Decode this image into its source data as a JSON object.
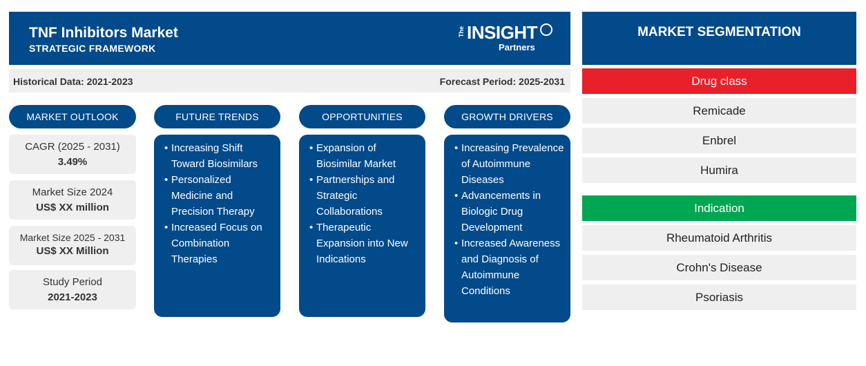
{
  "header": {
    "title": "TNF Inhibitors Market",
    "subtitle": "STRATEGIC FRAMEWORK",
    "logo": {
      "the": "The",
      "insight": "INSIGHT",
      "partners": "Partners"
    }
  },
  "period": {
    "historical": "Historical Data: 2021-2023",
    "forecast": "Forecast Period: 2025-2031"
  },
  "columns": {
    "outlook": "MARKET OUTLOOK",
    "trends": "FUTURE TRENDS",
    "opportunities": "OPPORTUNITIES",
    "drivers": "GROWTH DRIVERS"
  },
  "outlook_cards": [
    {
      "label": "CAGR (2025 - 2031)",
      "value": "3.49%"
    },
    {
      "label": "Market Size 2024",
      "value": "US$ XX million"
    },
    {
      "label": "Market Size 2025 - 2031",
      "value": "US$ XX Million"
    },
    {
      "label": "Study Period",
      "value": "2021-2023"
    }
  ],
  "trends": [
    "Increasing Shift Toward Biosimilars",
    "Personalized Medicine and Precision Therapy",
    "Increased Focus on Combination Therapies"
  ],
  "opportunities": [
    "Expansion of Biosimilar Market",
    "Partnerships and Strategic Collaborations",
    "Therapeutic Expansion into New Indications"
  ],
  "drivers": [
    "Increasing Prevalence of Autoimmune Diseases",
    "Advancements in Biologic Drug Development",
    "Increased Awareness and Diagnosis of Autoimmune Conditions"
  ],
  "segmentation": {
    "title": "MARKET SEGMENTATION",
    "groups": [
      {
        "name": "Drug class",
        "color": "#e8202a",
        "items": [
          "Remicade",
          "Enbrel",
          "Humira"
        ]
      },
      {
        "name": "Indication",
        "color": "#00a651",
        "items": [
          "Rheumatoid Arthritis",
          "Crohn's Disease",
          "Psoriasis"
        ]
      }
    ]
  },
  "colors": {
    "primary_blue": "#034a8a",
    "light_gray": "#efefef"
  }
}
